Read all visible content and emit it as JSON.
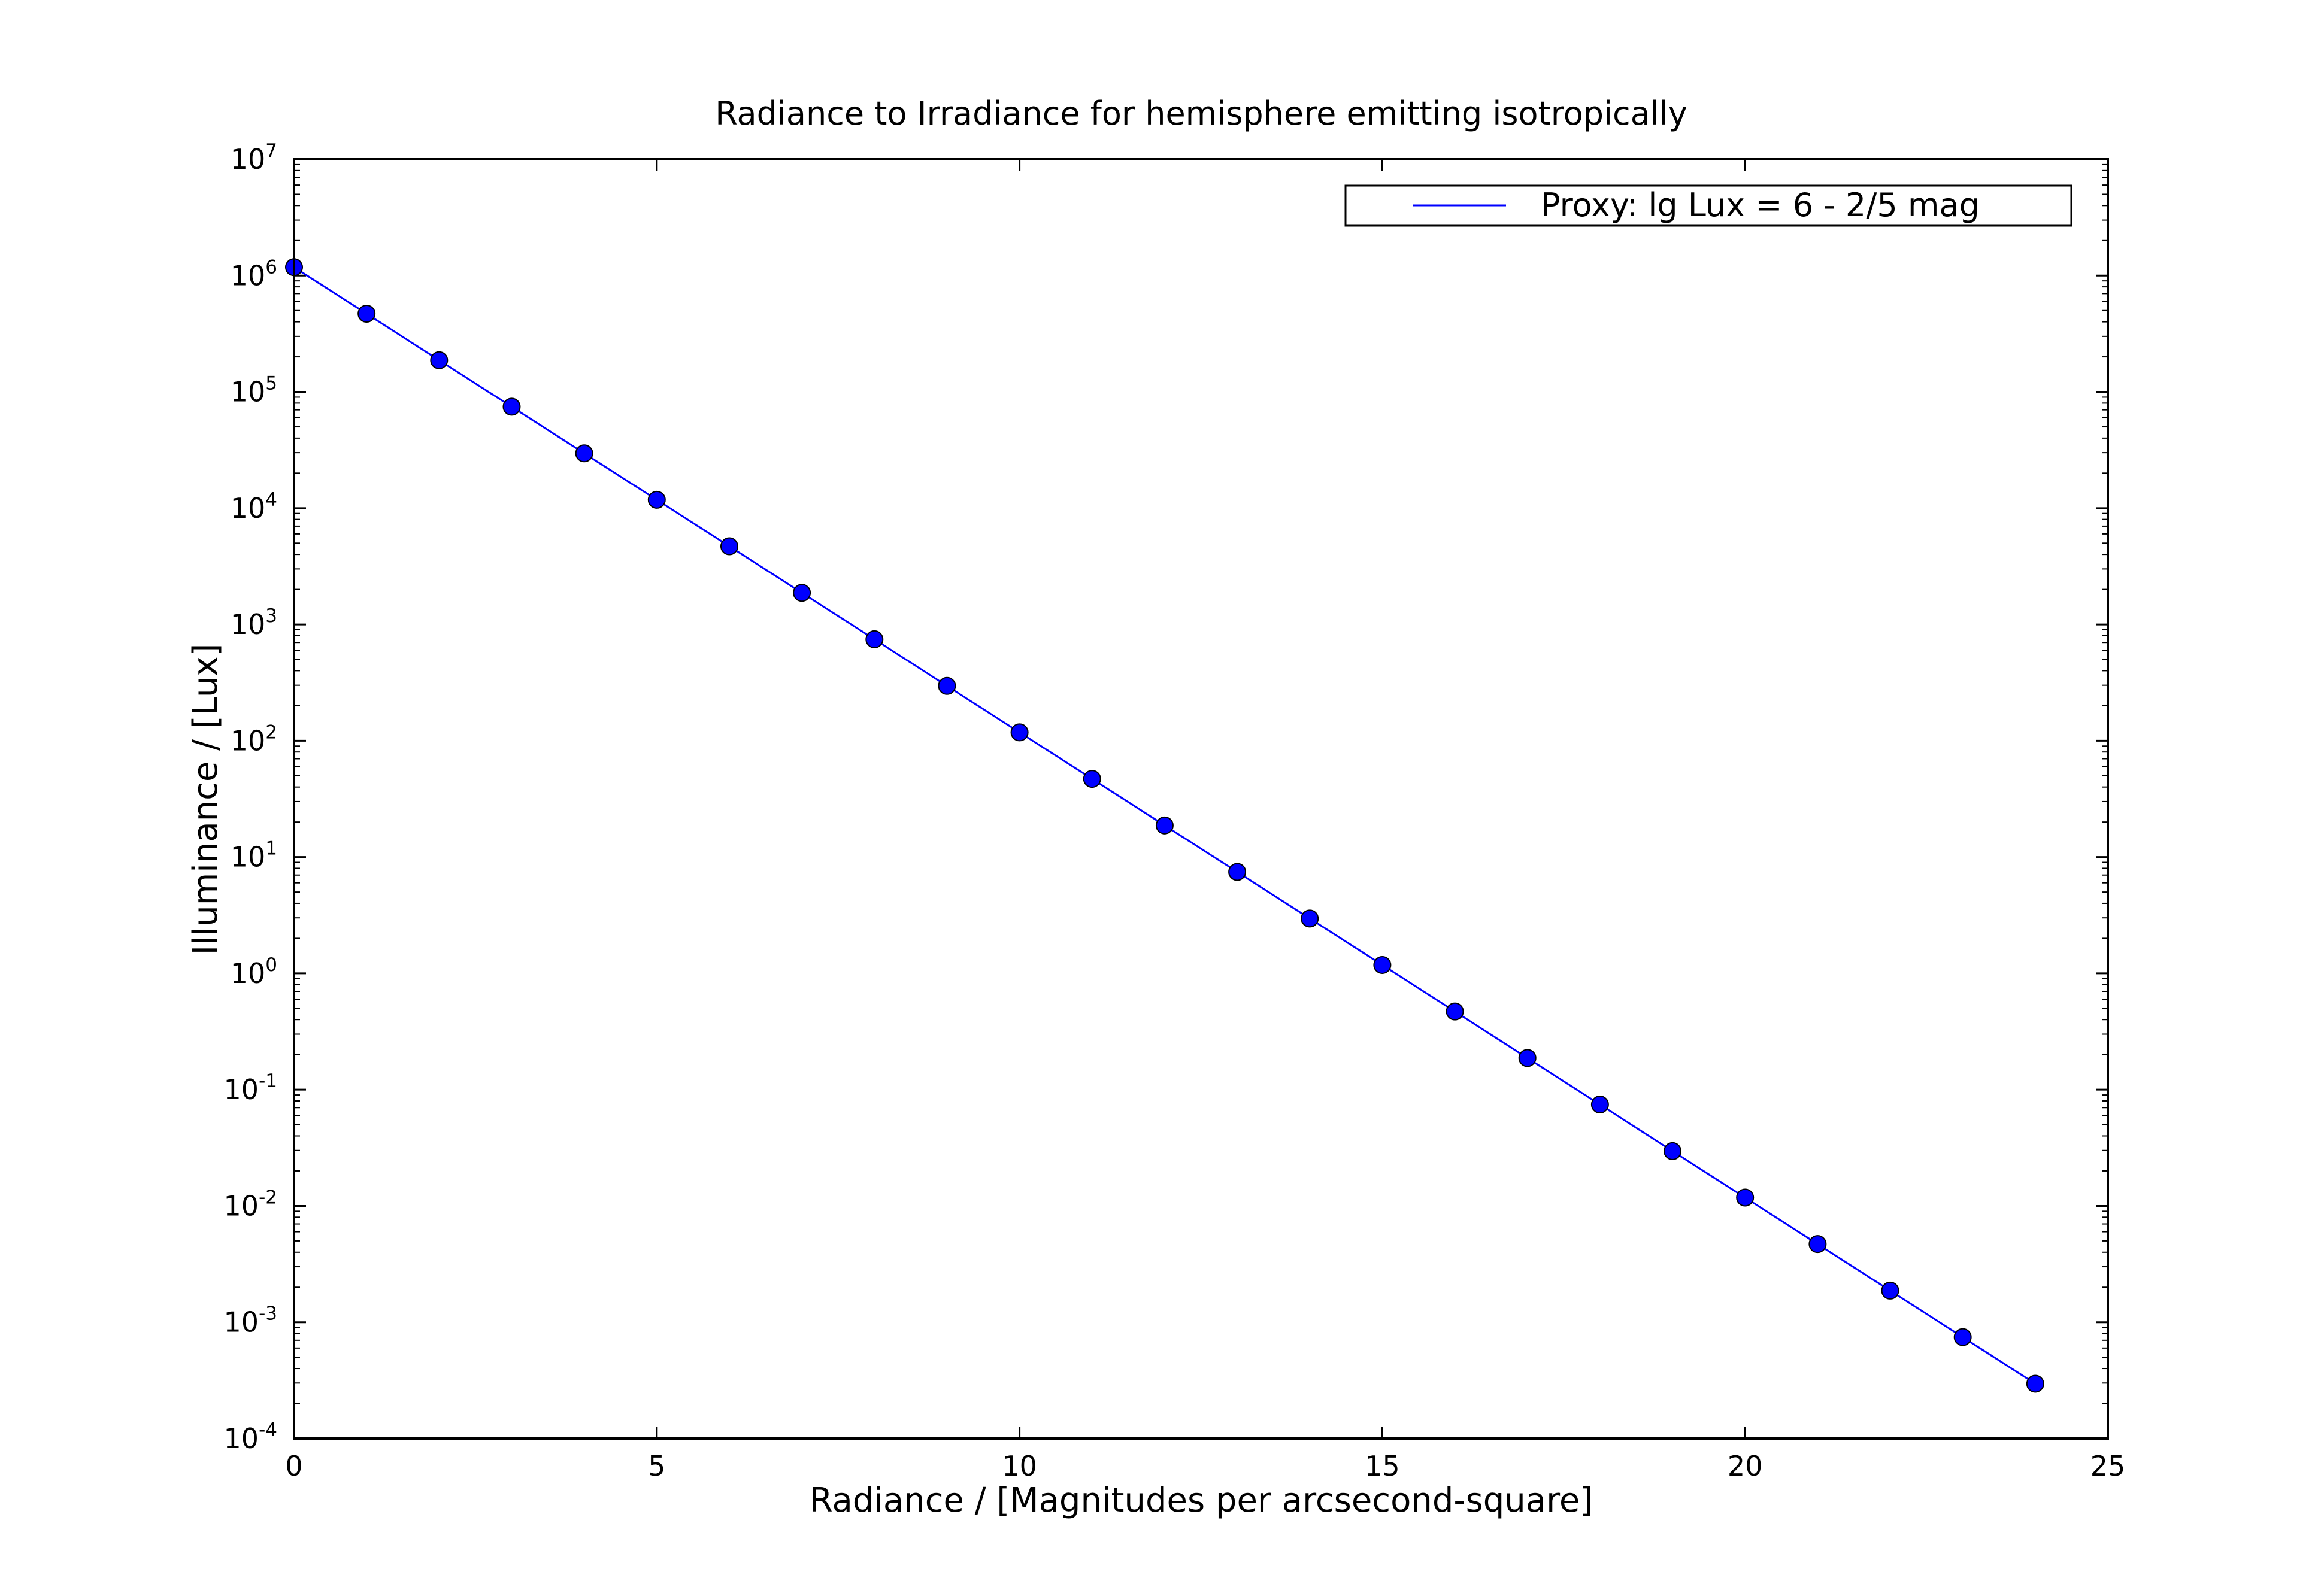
{
  "chart_data": {
    "type": "line",
    "title": "Radiance to Irradiance for hemisphere emitting isotropically",
    "xlabel": "Radiance / [Magnitudes per arcsecond-square]",
    "ylabel": "Illuminance / [Lux]",
    "xlim": [
      0,
      25
    ],
    "ylim": [
      0.0001,
      10000000
    ],
    "yscale": "log",
    "grid": false,
    "legend_position": "top-right",
    "x_ticks": [
      "0",
      "5",
      "10",
      "15",
      "20",
      "25"
    ],
    "y_ticks": [
      {
        "base": "10",
        "exp": "7"
      },
      {
        "base": "10",
        "exp": "6"
      },
      {
        "base": "10",
        "exp": "5"
      },
      {
        "base": "10",
        "exp": "4"
      },
      {
        "base": "10",
        "exp": "3"
      },
      {
        "base": "10",
        "exp": "2"
      },
      {
        "base": "10",
        "exp": "1"
      },
      {
        "base": "10",
        "exp": "0"
      },
      {
        "base": "10",
        "exp": "-1"
      },
      {
        "base": "10",
        "exp": "-2"
      },
      {
        "base": "10",
        "exp": "-3"
      },
      {
        "base": "10",
        "exp": "-4"
      }
    ],
    "series": [
      {
        "name": "Proxy: lg Lux = 6 - 2/5 mag",
        "color": "#0000ff",
        "marker": "circle",
        "x": [
          0,
          1,
          2,
          3,
          4,
          5,
          6,
          7,
          8,
          9,
          10,
          11,
          12,
          13,
          14,
          15,
          16,
          17,
          18,
          19,
          20,
          21,
          22,
          23,
          24
        ],
        "y": [
          1180000,
          470000,
          187000,
          74500,
          29600,
          11800,
          4700,
          1870,
          745,
          296,
          118,
          47,
          18.7,
          7.45,
          2.96,
          1.18,
          0.47,
          0.187,
          0.0745,
          0.0296,
          0.0118,
          0.0047,
          0.00187,
          0.000745,
          0.000296
        ]
      }
    ]
  }
}
